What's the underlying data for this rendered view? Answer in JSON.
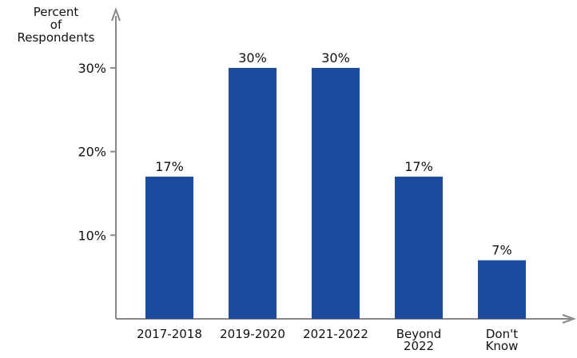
{
  "chart_data": {
    "type": "bar",
    "ylabel": "Percent of Respondents",
    "ylabel_lines": [
      "Percent",
      "of",
      "Respondents"
    ],
    "yticks": [
      "10%",
      "20%",
      "30%"
    ],
    "ytick_values": [
      10,
      20,
      30
    ],
    "ylim": [
      0,
      30
    ],
    "categories": [
      "2017-2018",
      "2019-2020",
      "2021-2022",
      "Beyond 2022",
      "Don't Know"
    ],
    "category_lines": [
      [
        "2017-2018"
      ],
      [
        "2019-2020"
      ],
      [
        "2021-2022"
      ],
      [
        "Beyond",
        "2022"
      ],
      [
        "Don't",
        "Know"
      ]
    ],
    "values": [
      17,
      30,
      30,
      17,
      7
    ],
    "value_labels": [
      "17%",
      "30%",
      "30%",
      "17%",
      "7%"
    ],
    "bar_color": "#1c4a9c",
    "axis_color": "#888888",
    "grid": false
  }
}
